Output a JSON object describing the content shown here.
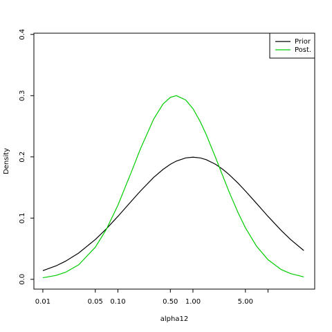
{
  "chart_data": {
    "type": "line",
    "xlabel": "alpha12",
    "ylabel": "Density",
    "xscale": "log",
    "x": [
      0.01,
      0.015,
      0.02,
      0.03,
      0.05,
      0.07,
      0.1,
      0.15,
      0.2,
      0.3,
      0.4,
      0.5,
      0.6,
      0.8,
      1,
      1.25,
      1.5,
      2,
      2.5,
      3,
      4,
      5,
      7,
      10,
      15,
      20,
      30
    ],
    "series": [
      {
        "name": "Prior",
        "color": "#000000",
        "values": [
          0.0141,
          0.022,
          0.0295,
          0.0429,
          0.065,
          0.0824,
          0.1028,
          0.1272,
          0.1443,
          0.1665,
          0.1796,
          0.1879,
          0.1931,
          0.1983,
          0.1995,
          0.1983,
          0.1955,
          0.1879,
          0.1796,
          0.1716,
          0.1569,
          0.1443,
          0.1243,
          0.1028,
          0.0798,
          0.065,
          0.047
        ]
      },
      {
        "name": "Post.",
        "color": "#00cd00",
        "values": [
          0.0026,
          0.0064,
          0.0114,
          0.0237,
          0.0524,
          0.0814,
          0.121,
          0.1743,
          0.2133,
          0.2619,
          0.2864,
          0.2972,
          0.3,
          0.293,
          0.2787,
          0.2576,
          0.2366,
          0.1991,
          0.1687,
          0.1442,
          0.1085,
          0.0842,
          0.0545,
          0.032,
          0.016,
          0.0093,
          0.004
        ]
      }
    ],
    "xlim": [
      0.0076,
      41.9
    ],
    "xticks": [
      {
        "value": 0.01,
        "label": "0.01"
      },
      {
        "value": 0.05,
        "label": "0.05"
      },
      {
        "value": 0.1,
        "label": "0.10"
      },
      {
        "value": 0.5,
        "label": "0.50"
      },
      {
        "value": 1,
        "label": "1.00"
      },
      {
        "value": 5,
        "label": "5.00"
      },
      {
        "value": 10,
        "label": null
      }
    ],
    "ylim": [
      -0.016,
      0.402
    ],
    "yticks": [
      {
        "value": 0,
        "label": "0.0"
      },
      {
        "value": 0.1,
        "label": "0.1"
      },
      {
        "value": 0.2,
        "label": "0.2"
      },
      {
        "value": 0.3,
        "label": "0.3"
      },
      {
        "value": 0.4,
        "label": "0.4"
      }
    ],
    "legend": "top-right"
  }
}
